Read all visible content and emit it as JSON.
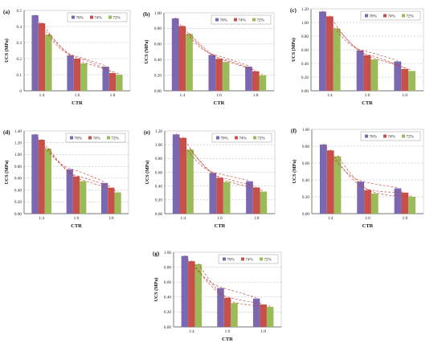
{
  "colors": {
    "76%": "#7b68b2",
    "74%": "#c8504b",
    "72%": "#9bbb59",
    "trend": "#c0392b",
    "grid": "#b0b0b0"
  },
  "chart_data": [
    {
      "panel": "(a)",
      "type": "bar",
      "categories": [
        "1:4",
        "1:6",
        "1:8"
      ],
      "series": [
        {
          "name": "76%",
          "values": [
            0.47,
            0.22,
            0.15
          ]
        },
        {
          "name": "74%",
          "values": [
            0.42,
            0.2,
            0.11
          ]
        },
        {
          "name": "72%",
          "values": [
            0.35,
            0.17,
            0.1
          ]
        }
      ],
      "xlabel": "CTR",
      "ylabel": "UCS (MPa)",
      "ylim": [
        0,
        0.5
      ],
      "yticks": [
        "0",
        "0.1",
        "0.2",
        "0.3",
        "0.4",
        "0.5"
      ],
      "grid": true,
      "legend": "top-right"
    },
    {
      "panel": "(b)",
      "type": "bar",
      "categories": [
        "1:4",
        "1:6",
        "1:8"
      ],
      "series": [
        {
          "name": "76%",
          "values": [
            0.93,
            0.46,
            0.31
          ]
        },
        {
          "name": "74%",
          "values": [
            0.83,
            0.41,
            0.25
          ]
        },
        {
          "name": "72%",
          "values": [
            0.73,
            0.37,
            0.2
          ]
        }
      ],
      "xlabel": "CTR",
      "ylabel": "UCS (MPa)",
      "ylim": [
        0,
        1.0
      ],
      "yticks": [
        "0.00",
        "0.20",
        "0.40",
        "0.60",
        "0.80",
        "1.00"
      ],
      "grid": true,
      "legend": "top-right"
    },
    {
      "panel": "(c)",
      "type": "bar",
      "categories": [
        "1:4",
        "1:6",
        "1:8"
      ],
      "series": [
        {
          "name": "76%",
          "values": [
            1.16,
            0.59,
            0.43
          ]
        },
        {
          "name": "74%",
          "values": [
            1.09,
            0.52,
            0.32
          ]
        },
        {
          "name": "72%",
          "values": [
            0.91,
            0.46,
            0.29
          ]
        }
      ],
      "xlabel": "CTR",
      "ylabel": "UCS (MPa)",
      "ylim": [
        0,
        1.2
      ],
      "yticks": [
        "0.00",
        "0.20",
        "0.40",
        "0.60",
        "0.80",
        "1.00",
        "1.20"
      ],
      "grid": true,
      "legend": "top-right"
    },
    {
      "panel": "(d)",
      "type": "bar",
      "categories": [
        "1:4",
        "1:6",
        "1:8"
      ],
      "series": [
        {
          "name": "76%",
          "values": [
            1.34,
            0.75,
            0.52
          ]
        },
        {
          "name": "74%",
          "values": [
            1.25,
            0.63,
            0.44
          ]
        },
        {
          "name": "72%",
          "values": [
            1.1,
            0.55,
            0.36
          ]
        }
      ],
      "xlabel": "CTR",
      "ylabel": "UCS (MPa)",
      "ylim": [
        0,
        1.4
      ],
      "yticks": [
        "0.00",
        "0.20",
        "0.40",
        "0.60",
        "0.80",
        "1.00",
        "1.20",
        "1.40"
      ],
      "grid": true,
      "legend": "top-right"
    },
    {
      "panel": "(e)",
      "type": "bar",
      "categories": [
        "1:4",
        "1:6",
        "1:8"
      ],
      "series": [
        {
          "name": "76%",
          "values": [
            1.15,
            0.59,
            0.47
          ]
        },
        {
          "name": "74%",
          "values": [
            1.1,
            0.52,
            0.38
          ]
        },
        {
          "name": "72%",
          "values": [
            0.93,
            0.46,
            0.32
          ]
        }
      ],
      "xlabel": "CTR",
      "ylabel": "UCS (MPa)",
      "ylim": [
        0,
        1.2
      ],
      "yticks": [
        "0.00",
        "0.20",
        "0.40",
        "0.60",
        "0.80",
        "1.00",
        "1.20"
      ],
      "grid": true,
      "legend": "top-right"
    },
    {
      "panel": "(f)",
      "type": "bar",
      "categories": [
        "1:4",
        "1:6",
        "1:8"
      ],
      "series": [
        {
          "name": "76%",
          "values": [
            0.82,
            0.38,
            0.3
          ]
        },
        {
          "name": "74%",
          "values": [
            0.75,
            0.28,
            0.25
          ]
        },
        {
          "name": "72%",
          "values": [
            0.68,
            0.24,
            0.2
          ]
        }
      ],
      "xlabel": "CTR",
      "ylabel": "UCS (MPa)",
      "ylim": [
        0,
        1.0
      ],
      "yticks": [
        "0.00",
        "0.20",
        "0.40",
        "0.60",
        "0.80",
        "1.00"
      ],
      "grid": true,
      "legend": "top-right"
    },
    {
      "panel": "(g)",
      "type": "bar",
      "categories": [
        "1:4",
        "1:6",
        "1:8"
      ],
      "series": [
        {
          "name": "76%",
          "values": [
            0.95,
            0.52,
            0.38
          ]
        },
        {
          "name": "74%",
          "values": [
            0.88,
            0.39,
            0.3
          ]
        },
        {
          "name": "72%",
          "values": [
            0.84,
            0.32,
            0.27
          ]
        }
      ],
      "xlabel": "CTR",
      "ylabel": "UCS (MPa)",
      "ylim": [
        0,
        1.0
      ],
      "yticks": [
        "0.00",
        "0.20",
        "0.40",
        "0.60",
        "0.80",
        "1.00"
      ],
      "grid": true,
      "legend": "top-right"
    }
  ]
}
